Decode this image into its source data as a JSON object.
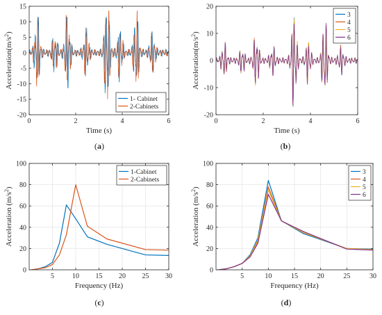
{
  "chart_data": [
    {
      "type": "line",
      "panel_label": "(a)",
      "xlabel": "Time (s)",
      "ylabel": "Acceleration(m/s",
      "ylabel_sup": "2",
      "ylabel_end": ")",
      "xlim": [
        0,
        6
      ],
      "ylim": [
        -20,
        15
      ],
      "xticks": [
        0,
        2,
        4,
        6
      ],
      "yticks": [
        -20,
        -15,
        -10,
        -5,
        0,
        5,
        10,
        15
      ],
      "grid": false,
      "legend_position": "bottom-right",
      "bursts": [
        {
          "t": 0.35,
          "amp": 9.5
        },
        {
          "t": 1.1,
          "amp": 5.0
        },
        {
          "t": 1.65,
          "amp": 10.5
        },
        {
          "t": 2.45,
          "amp": 6.0
        },
        {
          "t": 3.35,
          "amp": 16.5
        },
        {
          "t": 3.9,
          "amp": 6.5
        },
        {
          "t": 4.6,
          "amp": 10.5
        },
        {
          "t": 5.3,
          "amp": 5.0
        }
      ],
      "series": [
        {
          "name": "1- Cabinet",
          "color": "#0072BD",
          "peak_max": 11.5,
          "peak_min": -13.0
        },
        {
          "name": "2-Cabinets",
          "color": "#D95319",
          "peak_max": 13.5,
          "peak_min": -16.5
        }
      ]
    },
    {
      "type": "line",
      "panel_label": "(b)",
      "xlabel": "Time (s)",
      "ylabel": "Acceleration(m/s",
      "ylabel_sup": "2",
      "ylabel_end": ")",
      "xlim": [
        0,
        6
      ],
      "ylim": [
        -20,
        20
      ],
      "xticks": [
        0,
        2,
        4,
        6
      ],
      "yticks": [
        -20,
        -10,
        0,
        10,
        20
      ],
      "grid": false,
      "legend_position": "top-right",
      "bursts": [
        {
          "t": 0.35,
          "amp": 5.0
        },
        {
          "t": 1.1,
          "amp": 3.5
        },
        {
          "t": 1.7,
          "amp": 8.0
        },
        {
          "t": 2.4,
          "amp": 4.0
        },
        {
          "t": 3.3,
          "amp": 16.0
        },
        {
          "t": 3.9,
          "amp": 6.0
        },
        {
          "t": 4.6,
          "amp": 12.5
        },
        {
          "t": 5.3,
          "amp": 4.0
        }
      ],
      "series": [
        {
          "name": "3",
          "color": "#0072BD",
          "peak_max": 16.0,
          "peak_min": -17.0
        },
        {
          "name": "4",
          "color": "#D95319",
          "peak_max": 15.5,
          "peak_min": -16.5
        },
        {
          "name": "5",
          "color": "#EDB120",
          "peak_max": 15.5,
          "peak_min": -16.5
        },
        {
          "name": "6",
          "color": "#7E2F8E",
          "peak_max": 15.5,
          "peak_min": -16.5
        }
      ]
    },
    {
      "type": "line",
      "panel_label": "(c)",
      "xlabel": "Frequency (Hz)",
      "ylabel": "Acceleration (m/s",
      "ylabel_sup": "2",
      "ylabel_end": ")",
      "xlim": [
        0,
        30
      ],
      "ylim": [
        0,
        100
      ],
      "xticks": [
        5,
        10,
        15,
        20,
        25,
        30
      ],
      "yticks": [
        0,
        20,
        40,
        60,
        80,
        100
      ],
      "grid": true,
      "legend_position": "top-right",
      "series": [
        {
          "name": "1-Cabinet",
          "color": "#0072BD",
          "x": [
            0.5,
            2,
            3.5,
            5,
            6.5,
            8,
            10,
            12.5,
            16.7,
            25,
            30
          ],
          "y": [
            0,
            1,
            3,
            7,
            25,
            61,
            48,
            31,
            24,
            14,
            13.5
          ]
        },
        {
          "name": "2-Cabinets",
          "color": "#D95319",
          "x": [
            0.5,
            2,
            3.5,
            5,
            6.5,
            8,
            10,
            12.5,
            16.7,
            25,
            30
          ],
          "y": [
            0,
            1,
            2,
            5,
            14,
            33,
            80,
            41,
            29,
            19,
            18.5
          ]
        }
      ]
    },
    {
      "type": "line",
      "panel_label": "(d)",
      "xlabel": "Frequency (Hz)",
      "ylabel": "Acceleration (m/s",
      "ylabel_sup": "2",
      "ylabel_end": ")",
      "xlim": [
        0,
        30
      ],
      "ylim": [
        0,
        100
      ],
      "xticks": [
        5,
        10,
        15,
        20,
        25,
        30
      ],
      "yticks": [
        0,
        20,
        40,
        60,
        80,
        100
      ],
      "grid": true,
      "legend_position": "top-right",
      "series": [
        {
          "name": "3",
          "color": "#0072BD",
          "x": [
            0.5,
            2,
            3.5,
            5,
            6.5,
            8,
            10,
            12.5,
            16.7,
            25,
            30
          ],
          "y": [
            0,
            1,
            3,
            6,
            14,
            30,
            84,
            46,
            34,
            20,
            19.5
          ]
        },
        {
          "name": "4",
          "color": "#D95319",
          "x": [
            0.5,
            2,
            3.5,
            5,
            6.5,
            8,
            10,
            12.5,
            16.7,
            25,
            30
          ],
          "y": [
            0,
            1,
            3,
            6,
            13,
            27,
            78,
            46,
            35,
            20,
            19
          ]
        },
        {
          "name": "5",
          "color": "#EDB120",
          "x": [
            0.5,
            2,
            3.5,
            5,
            6.5,
            8,
            10,
            12.5,
            16.7,
            25,
            30
          ],
          "y": [
            0,
            1,
            3,
            6,
            13,
            28,
            75,
            46,
            35,
            20,
            19
          ]
        },
        {
          "name": "6",
          "color": "#7E2F8E",
          "x": [
            0.5,
            2,
            3.5,
            5,
            6.5,
            8,
            10,
            12.5,
            16.7,
            25,
            30
          ],
          "y": [
            0,
            1,
            3,
            6,
            12,
            25,
            71,
            46,
            36,
            19.5,
            18.5
          ]
        }
      ]
    }
  ]
}
